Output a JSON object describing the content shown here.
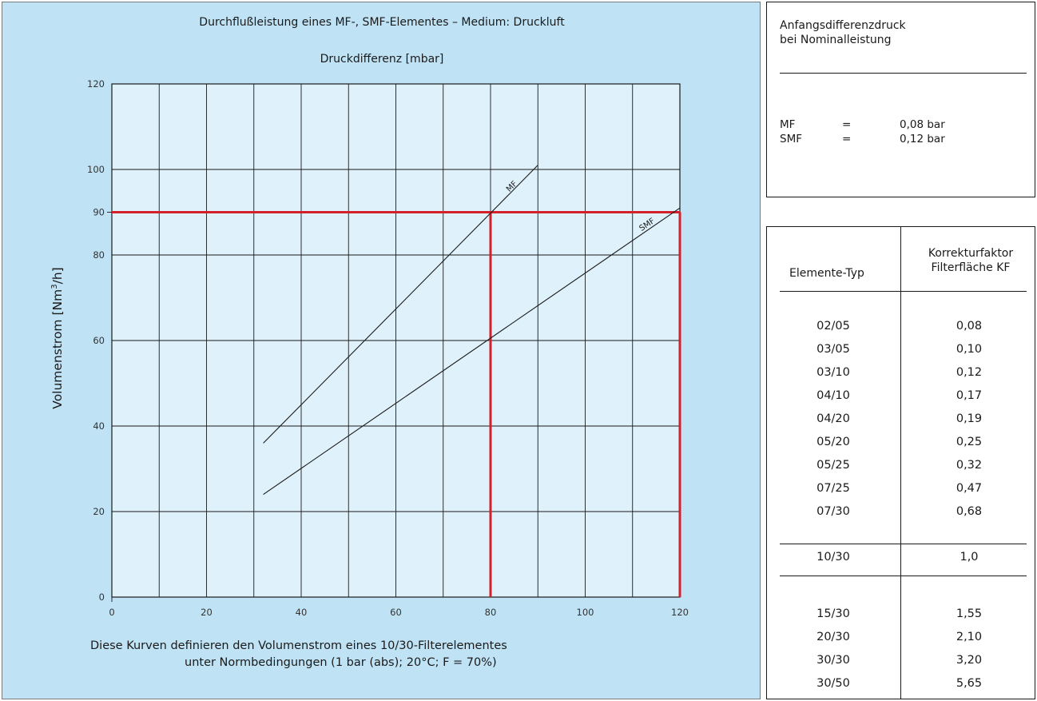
{
  "chart_data": {
    "type": "line",
    "title": "Durchflußleistung eines MF-, SMF-Elementes – Medium: Druckluft",
    "subtitle": "Druckdifferenz [mbar]",
    "ylabel_main": "Volumenstrom [Nm",
    "ylabel_sup": "3",
    "ylabel_tail": "/h]",
    "xlim": [
      0,
      120
    ],
    "ylim": [
      0,
      120
    ],
    "x_ticks": [
      "0",
      "20",
      "40",
      "60",
      "80",
      "100",
      "120"
    ],
    "y_ticks": [
      "0",
      "20",
      "40",
      "60",
      "80",
      "90",
      "100",
      "120"
    ],
    "grid": true,
    "series": [
      {
        "name": "MF",
        "points": [
          [
            32,
            36
          ],
          [
            90,
            101
          ]
        ]
      },
      {
        "name": "SMF",
        "points": [
          [
            32,
            24
          ],
          [
            120,
            91
          ]
        ]
      }
    ],
    "reference_lines": [
      {
        "type": "horizontal",
        "y": 90,
        "x_range": [
          0,
          120
        ],
        "color": "#d4202a"
      },
      {
        "type": "vertical",
        "x": 80,
        "y_range": [
          0,
          90
        ],
        "color": "#d4202a"
      },
      {
        "type": "vertical",
        "x": 120,
        "y_range": [
          0,
          90
        ],
        "color": "#d4202a"
      }
    ],
    "footnote": [
      "Diese Kurven definieren den Volumenstrom eines 10/30-Filterelementes",
      "unter Normbedingungen (1 bar (abs); 20°C; F = 70%)"
    ]
  },
  "info": {
    "title_line1": "Anfangsdifferenzdruck",
    "title_line2": "bei Nominalleistung",
    "rows": [
      {
        "label": "MF",
        "eq": "=",
        "value": "0,08 bar"
      },
      {
        "label": "SMF",
        "eq": "=",
        "value": "0,12 bar"
      }
    ]
  },
  "table": {
    "header_col1": "Elemente-Typ",
    "header_col2_line1": "Korrekturfaktor",
    "header_col2_line2": "Filterfläche KF",
    "rows": [
      {
        "type": "02/05",
        "kf": "0,08"
      },
      {
        "type": "03/05",
        "kf": "0,10"
      },
      {
        "type": "03/10",
        "kf": "0,12"
      },
      {
        "type": "04/10",
        "kf": "0,17"
      },
      {
        "type": "04/20",
        "kf": "0,19"
      },
      {
        "type": "05/20",
        "kf": "0,25"
      },
      {
        "type": "05/25",
        "kf": "0,32"
      },
      {
        "type": "07/25",
        "kf": "0,47"
      },
      {
        "type": "07/30",
        "kf": "0,68"
      },
      {
        "type": "10/30",
        "kf": "1,0"
      },
      {
        "type": "15/30",
        "kf": "1,55"
      },
      {
        "type": "20/30",
        "kf": "2,10"
      },
      {
        "type": "30/30",
        "kf": "3,20"
      },
      {
        "type": "30/50",
        "kf": "5,65"
      }
    ]
  },
  "colors": {
    "panel_bg": "#bfe3f5",
    "plot_bg": "#dff1fa",
    "reference_red": "#d4202a",
    "line_black": "#1a1a1a"
  }
}
